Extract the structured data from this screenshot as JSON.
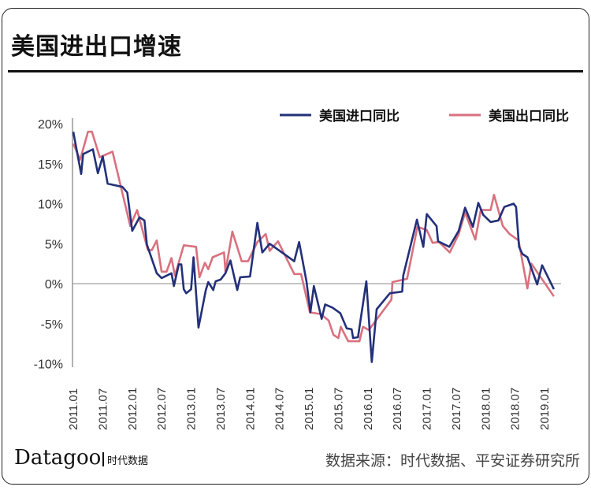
{
  "title": "美国进出口增速",
  "brand": {
    "logo": "Datagoo",
    "name": "时代数据"
  },
  "source": "数据来源：时代数据、平安证券研究所",
  "chart_data": {
    "type": "line",
    "title": "美国进出口增速",
    "x_unit": "months since 2011.01",
    "xlabel": "",
    "ylabel": "",
    "xlim": [
      0,
      100
    ],
    "ylim": [
      -10,
      20
    ],
    "yticks": [
      20,
      15,
      10,
      5,
      0,
      -5,
      -10
    ],
    "ytick_labels": [
      "20%",
      "15%",
      "10%",
      "5%",
      "0%",
      "-5%",
      "-10%"
    ],
    "xtick_labels": [
      "2011.01",
      "2011.07",
      "2012.01",
      "2012.07",
      "2013.01",
      "2013.07",
      "2014.01",
      "2014.07",
      "2015.01",
      "2015.07",
      "2016.01",
      "2016.07",
      "2017.01",
      "2017.07",
      "2018.01",
      "2018.07",
      "2019.01"
    ],
    "legend_position": "top-right",
    "series": [
      {
        "name": "美国进口同比",
        "color": "#23307a",
        "x": [
          0,
          1.6,
          2,
          4,
          5,
          6,
          7,
          10,
          11,
          12,
          13.5,
          14.5,
          15,
          17,
          18,
          20,
          20.5,
          21.5,
          22,
          22.5,
          23,
          24,
          24.5,
          25.5,
          27,
          27.5,
          28.5,
          29,
          30,
          31,
          32,
          33.4,
          34,
          36,
          37.5,
          38.5,
          40,
          45,
          46,
          47.5,
          48.3,
          49,
          50.6,
          51.3,
          52.8,
          54.4,
          55.7,
          56.7,
          57,
          58,
          59.7,
          60.8,
          61.8,
          64.5,
          67,
          67.2,
          70,
          71.3,
          72,
          74,
          74.3,
          76.6,
          78.5,
          79.8,
          81.4,
          82.5,
          83.5,
          85,
          86.6,
          87.8,
          89.7,
          90.2,
          90.8,
          91.5,
          92.5,
          94.5,
          95.5,
          97.9
        ],
        "y": [
          19.0,
          13.7,
          16.2,
          16.8,
          13.8,
          15.9,
          12.5,
          12.1,
          11.4,
          6.6,
          8.3,
          7.9,
          4.9,
          1.3,
          0.7,
          1.3,
          -0.3,
          2.4,
          2.4,
          -0.7,
          -1.2,
          -0.7,
          3.3,
          -5.5,
          -0.8,
          0.2,
          -0.8,
          0.3,
          0.5,
          1.3,
          2.9,
          -0.8,
          0.8,
          0.9,
          7.6,
          3.9,
          5.0,
          2.8,
          5.2,
          0.3,
          -3.6,
          -0.3,
          -4.4,
          -2.6,
          -3.0,
          -3.7,
          -5.6,
          -5.7,
          -6.8,
          -6.7,
          0.3,
          -9.8,
          -3.2,
          -1.2,
          -1.0,
          1.0,
          8.0,
          4.6,
          8.7,
          7.2,
          5.3,
          4.6,
          6.6,
          9.5,
          7.1,
          10.1,
          8.6,
          7.7,
          7.9,
          9.6,
          10.0,
          9.6,
          4.6,
          3.7,
          3.3,
          -0.1,
          2.3,
          -0.7
        ]
      },
      {
        "name": "美国出口同比",
        "color": "#d9717f",
        "x": [
          0,
          1.4,
          3,
          3.8,
          5.4,
          8,
          11.6,
          13,
          15.2,
          16,
          17,
          18,
          19,
          20,
          20.7,
          22.5,
          25,
          25.7,
          26.8,
          27.5,
          28.4,
          30.7,
          31,
          32.4,
          34.3,
          35.6,
          37.5,
          39.2,
          40,
          41.7,
          45,
          46.4,
          48.2,
          50.4,
          52,
          53,
          54,
          54.5,
          56,
          58.3,
          59,
          60.2,
          64.8,
          65,
          68,
          70.1,
          72,
          73.2,
          74.5,
          76.7,
          78.5,
          79.8,
          81.9,
          83,
          85,
          85.7,
          87.5,
          88.9,
          90.7,
          92.5,
          93.3,
          97.9
        ],
        "y": [
          17.5,
          15.5,
          19.0,
          19.0,
          15.8,
          16.5,
          7.2,
          9.2,
          4.2,
          4.2,
          5.4,
          1.5,
          1.5,
          3.2,
          1.0,
          4.8,
          4.6,
          0.8,
          2.6,
          1.8,
          3.3,
          3.9,
          1.5,
          6.5,
          2.8,
          2.8,
          5.2,
          6.2,
          4.1,
          5.3,
          1.2,
          1.2,
          -3.6,
          -3.8,
          -4.6,
          -6.4,
          -6.8,
          -5.4,
          -7.2,
          -7.2,
          -5.4,
          -5.8,
          -2.0,
          0.2,
          0.6,
          7.1,
          6.7,
          5.1,
          5.2,
          3.9,
          6.2,
          8.9,
          5.5,
          9.2,
          9.2,
          11.1,
          7.2,
          6.2,
          5.4,
          -0.6,
          2.5,
          -1.6
        ]
      }
    ]
  }
}
